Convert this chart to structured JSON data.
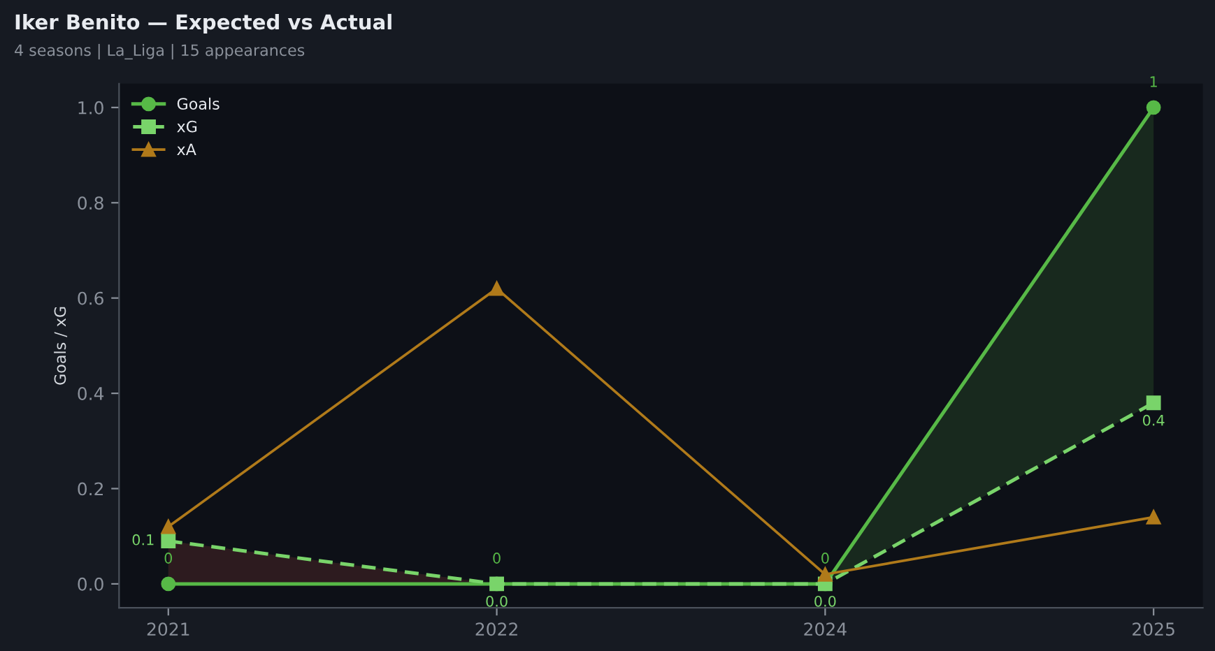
{
  "chart_data": {
    "type": "line",
    "title": "Iker Benito — Expected vs Actual",
    "subtitle": "4 seasons | La_Liga | 15 appearances",
    "ylabel": "Goals / xG",
    "categories": [
      "2021",
      "2022",
      "2024",
      "2025"
    ],
    "series": [
      {
        "name": "Goals",
        "color": "#57b947",
        "values": [
          0,
          0,
          0,
          1
        ],
        "marker": "circle",
        "line_style": "solid",
        "value_labels": [
          "0",
          "0",
          "0",
          "1"
        ],
        "lower": [
          0,
          0,
          0,
          0.38
        ],
        "upper": [
          0.09,
          0,
          0,
          1
        ]
      },
      {
        "name": "xG",
        "color": "#79d46a",
        "values": [
          0.09,
          0,
          0,
          0.38
        ],
        "marker": "square",
        "line_style": "dashed",
        "value_labels": [
          "0.1",
          "0.0",
          "0.0",
          "0.4"
        ]
      },
      {
        "name": "xA",
        "color": "#b07a1a",
        "values": [
          0.12,
          0.62,
          0.02,
          0.14
        ],
        "marker": "triangle",
        "line_style": "solid"
      }
    ],
    "ylim": [
      -0.05,
      1.05
    ],
    "yticks": [
      {
        "value": 0,
        "label": "0.0"
      },
      {
        "value": 0.2,
        "label": "0.2"
      },
      {
        "value": 0.4,
        "label": "0.4"
      },
      {
        "value": 0.6,
        "label": "0.6"
      },
      {
        "value": 0.8,
        "label": "0.8"
      },
      {
        "value": 1,
        "label": "1.0"
      }
    ],
    "legend": "top left"
  }
}
